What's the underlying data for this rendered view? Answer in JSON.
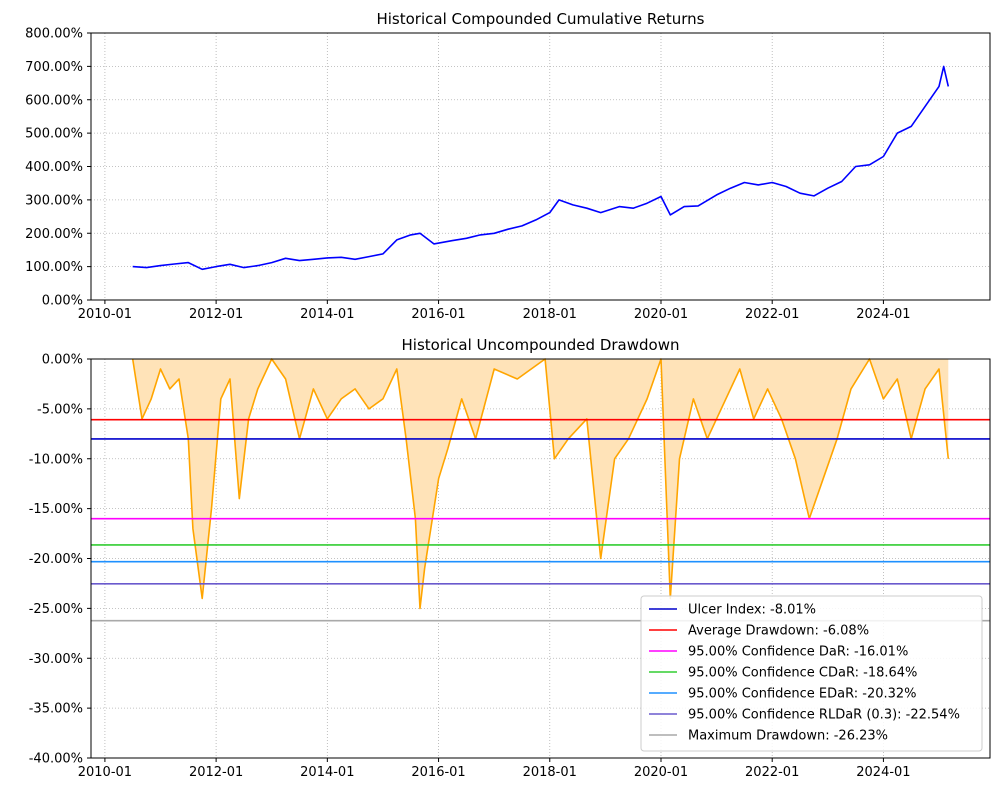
{
  "chart_data": [
    {
      "type": "line",
      "title": "Historical Compounded Cumulative Returns",
      "xlabel": "",
      "ylabel": "",
      "grid": true,
      "x_tick_labels": [
        "2010-01",
        "2012-01",
        "2014-01",
        "2016-01",
        "2018-01",
        "2020-01",
        "2022-01",
        "2024-01"
      ],
      "y_tick_labels": [
        "0.00%",
        "100.00%",
        "200.00%",
        "300.00%",
        "400.00%",
        "500.00%",
        "600.00%",
        "700.00%",
        "800.00%"
      ],
      "xlim": [
        "2009-10",
        "2025-12"
      ],
      "ylim": [
        0,
        800
      ],
      "line_color": "#0000ff",
      "series": [
        {
          "x": [
            "2010-07",
            "2010-10",
            "2011-01",
            "2011-04",
            "2011-07",
            "2011-10",
            "2012-01",
            "2012-04",
            "2012-07",
            "2012-10",
            "2013-01",
            "2013-04",
            "2013-07",
            "2013-10",
            "2014-01",
            "2014-04",
            "2014-07",
            "2014-10",
            "2015-01",
            "2015-04",
            "2015-07",
            "2015-09",
            "2015-12",
            "2016-04",
            "2016-07",
            "2016-10",
            "2017-01",
            "2017-04",
            "2017-07",
            "2017-10",
            "2018-01",
            "2018-03",
            "2018-06",
            "2018-09",
            "2018-12",
            "2019-04",
            "2019-07",
            "2019-10",
            "2020-01",
            "2020-03",
            "2020-06",
            "2020-09",
            "2021-01",
            "2021-04",
            "2021-07",
            "2021-10",
            "2022-01",
            "2022-04",
            "2022-07",
            "2022-10",
            "2023-01",
            "2023-04",
            "2023-07",
            "2023-10",
            "2024-01",
            "2024-04",
            "2024-07",
            "2024-10",
            "2025-01",
            "2025-02",
            "2025-03"
          ],
          "values": [
            100,
            97,
            103,
            108,
            112,
            92,
            100,
            107,
            97,
            103,
            112,
            125,
            118,
            122,
            126,
            128,
            122,
            130,
            138,
            180,
            195,
            200,
            168,
            178,
            185,
            195,
            200,
            212,
            222,
            240,
            262,
            300,
            285,
            275,
            262,
            280,
            275,
            290,
            310,
            255,
            280,
            282,
            315,
            335,
            352,
            345,
            352,
            340,
            320,
            312,
            335,
            355,
            400,
            405,
            430,
            500,
            520,
            580,
            640,
            700,
            640
          ]
        }
      ]
    },
    {
      "type": "area",
      "title": "Historical Uncompounded Drawdown",
      "xlabel": "",
      "ylabel": "",
      "grid": true,
      "x_tick_labels": [
        "2010-01",
        "2012-01",
        "2014-01",
        "2016-01",
        "2018-01",
        "2020-01",
        "2022-01",
        "2024-01"
      ],
      "y_tick_labels": [
        "0.00%",
        "-5.00%",
        "-10.00%",
        "-15.00%",
        "-20.00%",
        "-25.00%",
        "-30.00%",
        "-35.00%",
        "-40.00%"
      ],
      "xlim": [
        "2009-10",
        "2025-12"
      ],
      "ylim": [
        -40,
        0
      ],
      "line_color": "#ffa500",
      "fill_color": "#ffe3b8",
      "legend_position": "lower right",
      "series": [
        {
          "x": [
            "2010-07",
            "2010-09",
            "2010-11",
            "2011-01",
            "2011-03",
            "2011-05",
            "2011-07",
            "2011-08",
            "2011-10",
            "2011-12",
            "2012-02",
            "2012-04",
            "2012-06",
            "2012-08",
            "2012-10",
            "2013-01",
            "2013-04",
            "2013-07",
            "2013-10",
            "2014-01",
            "2014-04",
            "2014-07",
            "2014-10",
            "2015-01",
            "2015-04",
            "2015-06",
            "2015-08",
            "2015-09",
            "2015-10",
            "2016-01",
            "2016-03",
            "2016-06",
            "2016-09",
            "2017-01",
            "2017-06",
            "2017-12",
            "2018-02",
            "2018-05",
            "2018-09",
            "2018-12",
            "2019-03",
            "2019-06",
            "2019-10",
            "2020-01",
            "2020-03",
            "2020-05",
            "2020-08",
            "2020-11",
            "2021-02",
            "2021-06",
            "2021-09",
            "2021-12",
            "2022-03",
            "2022-06",
            "2022-09",
            "2022-12",
            "2023-03",
            "2023-06",
            "2023-10",
            "2024-01",
            "2024-04",
            "2024-07",
            "2024-10",
            "2025-01",
            "2025-03"
          ],
          "values": [
            0,
            -6,
            -4,
            -1,
            -3,
            -2,
            -8,
            -17,
            -24,
            -15,
            -4,
            -2,
            -14,
            -6,
            -3,
            0,
            -2,
            -8,
            -3,
            -6,
            -4,
            -3,
            -5,
            -4,
            -1,
            -8,
            -16,
            -25,
            -21,
            -12,
            -9,
            -4,
            -8,
            -1,
            -2,
            0,
            -10,
            -8,
            -6,
            -20,
            -10,
            -8,
            -4,
            0,
            -24,
            -10,
            -4,
            -8,
            -5,
            -1,
            -6,
            -3,
            -6,
            -10,
            -16,
            -12,
            -8,
            -3,
            0,
            -4,
            -2,
            -8,
            -3,
            -1,
            -10
          ]
        }
      ],
      "reference_lines": [
        {
          "label": "Ulcer Index: -8.01%",
          "value": -8.01,
          "color": "#0000cc"
        },
        {
          "label": "Average Drawdown: -6.08%",
          "value": -6.08,
          "color": "#ff0000"
        },
        {
          "label": "95.00% Confidence DaR: -16.01%",
          "value": -16.01,
          "color": "#ff00ff"
        },
        {
          "label": "95.00% Confidence CDaR: -18.64%",
          "value": -18.64,
          "color": "#32cd32"
        },
        {
          "label": "95.00% Confidence EDaR: -20.32%",
          "value": -20.32,
          "color": "#1e90ff"
        },
        {
          "label": "95.00% Confidence RLDaR (0.3): -22.54%",
          "value": -22.54,
          "color": "#6a5acd"
        },
        {
          "label": "Maximum Drawdown: -26.23%",
          "value": -26.23,
          "color": "#a9a9a9"
        }
      ]
    }
  ]
}
